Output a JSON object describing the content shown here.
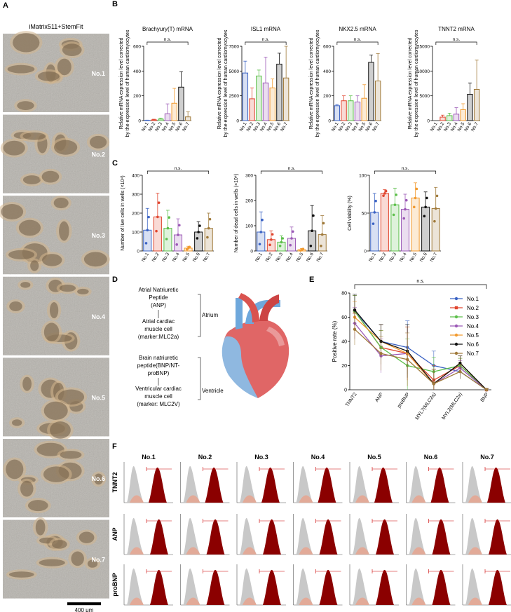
{
  "panels": {
    "A": "A",
    "B": "B",
    "C": "C",
    "D": "D",
    "E": "E",
    "F": "F"
  },
  "colors": {
    "No.1": "#3b63c4",
    "No.2": "#e0452e",
    "No.3": "#5cbf4a",
    "No.4": "#9b59b6",
    "No.5": "#f29a2e",
    "No.6": "#111111",
    "No.7": "#a07a3a",
    "atrium": "#6fa8dc",
    "ventricle": "#e06666",
    "dark_red": "#8b0000",
    "gray_hist": "#c8c8c8"
  },
  "panel_a": {
    "title": "iMatrix511+StemFit",
    "labels": [
      "No.1",
      "No.2",
      "No.3",
      "No.4",
      "No.5",
      "No.6",
      "No.7"
    ],
    "scale_bar": "400 μm"
  },
  "panel_b": {
    "ylabel_line1": "Relative mRNA expression level corrected",
    "ylabel_line2": "by the expression level of human cardiomyocytes",
    "ns": "n.s."
  },
  "panel_c": {
    "ns": "n.s."
  },
  "panel_d": {
    "anp": [
      "Atrial Natriuretic",
      "Peptide",
      "(ANP)"
    ],
    "mlc2a": [
      "Atrial cardiac",
      "muscle cell",
      "(marker:MLC2a)"
    ],
    "bnp": [
      "Brain natriuretic",
      "peptide(BNP/NT-",
      "proBNP)"
    ],
    "mlc2v": [
      "Ventricular cardiac",
      "muscle cell",
      "(marker: MLC2V)"
    ],
    "atrium": "Atrium",
    "ventricle": "Ventricle"
  },
  "panel_f": {
    "rows": [
      "TNNT2",
      "ANP",
      "proBNP"
    ],
    "samples": [
      "No.1",
      "No.2",
      "No.3",
      "No.4",
      "No.5",
      "No.6",
      "No.7"
    ]
  },
  "chart_data": [
    {
      "type": "bar",
      "title": "Brachyury(T) mRNA",
      "categories": [
        "No.1",
        "No.2",
        "No.3",
        "No.4",
        "No.5",
        "No.6",
        "No.7"
      ],
      "values": [
        2,
        6,
        12,
        55,
        140,
        270,
        30
      ],
      "errors": [
        2,
        5,
        8,
        80,
        120,
        125,
        40
      ],
      "ylim": [
        0,
        600
      ],
      "yticks": [
        0,
        200,
        400,
        600
      ],
      "ylabel": "Relative mRNA expression level corrected by the expression level of human cardiomyocytes",
      "annotation": "n.s."
    },
    {
      "type": "bar",
      "title": "ISL1 mRNA",
      "categories": [
        "No.1",
        "No.2",
        "No.3",
        "No.4",
        "No.5",
        "No.6",
        "No.7"
      ],
      "values": [
        4800,
        2200,
        4500,
        3800,
        3300,
        5700,
        4300
      ],
      "errors": [
        1200,
        1100,
        600,
        2600,
        900,
        1100,
        3200
      ],
      "ylim": [
        0,
        7500
      ],
      "yticks": [
        0,
        2500,
        5000,
        7500
      ],
      "ylabel": "Relative mRNA expression level corrected by the expression level of human cardiomyocytes",
      "annotation": "n.s."
    },
    {
      "type": "bar",
      "title": "NKX2.5 mRNA",
      "categories": [
        "No.1",
        "No.2",
        "No.3",
        "No.4",
        "No.5",
        "No.6",
        "No.7"
      ],
      "values": [
        120,
        160,
        160,
        150,
        180,
        470,
        320
      ],
      "errors": [
        10,
        40,
        40,
        50,
        110,
        60,
        220
      ],
      "ylim": [
        0,
        600
      ],
      "yticks": [
        0,
        200,
        400,
        600
      ],
      "ylabel": "Relative mRNA expression level corrected by the expression level of human cardiomyocytes",
      "annotation": "n.s."
    },
    {
      "type": "bar",
      "title": "TNNT2 mRNA",
      "categories": [
        "No.1",
        "No.2",
        "No.3",
        "No.4",
        "No.5",
        "No.6",
        "No.7"
      ],
      "values": [
        0,
        700,
        1000,
        1300,
        2200,
        5300,
        6300
      ],
      "errors": [
        0,
        400,
        500,
        1300,
        1200,
        2300,
        5900
      ],
      "ylim": [
        0,
        15000
      ],
      "yticks": [
        0,
        5000,
        10000,
        15000
      ],
      "ylabel": "Relative mRNA expression level corrected by the expression level of human cardiomyocytes",
      "annotation": "n.s."
    },
    {
      "type": "bar",
      "title": "",
      "categories": [
        "No.1",
        "No.2",
        "No.3",
        "No.4",
        "No.5",
        "No.6",
        "No.7"
      ],
      "values": [
        110,
        180,
        120,
        85,
        15,
        100,
        120
      ],
      "errors": [
        115,
        125,
        95,
        85,
        10,
        55,
        80
      ],
      "ylim": [
        0,
        400
      ],
      "yticks": [
        0,
        100,
        200,
        300,
        400
      ],
      "ylabel": "Number of live cells in wells (×10⁴)",
      "annotation": "n.s."
    },
    {
      "type": "bar",
      "title": "",
      "categories": [
        "No.1",
        "No.2",
        "No.3",
        "No.4",
        "No.5",
        "No.6",
        "No.7"
      ],
      "values": [
        75,
        45,
        35,
        50,
        5,
        80,
        65
      ],
      "errors": [
        80,
        35,
        25,
        45,
        5,
        100,
        75
      ],
      "ylim": [
        0,
        300
      ],
      "yticks": [
        0,
        100,
        200,
        300
      ],
      "ylabel": "Number of dead cells in wells (×10⁴)",
      "annotation": "n.s."
    },
    {
      "type": "bar",
      "title": "",
      "categories": [
        "No.1",
        "No.2",
        "No.3",
        "No.4",
        "No.5",
        "No.6",
        "No.7"
      ],
      "values": [
        51,
        76,
        61,
        55,
        70,
        58,
        56
      ],
      "errors": [
        25,
        5,
        22,
        20,
        20,
        20,
        28
      ],
      "ylim": [
        0,
        100
      ],
      "yticks": [
        0,
        50,
        100
      ],
      "ylabel": "Cell viability (%)",
      "annotation": "n.s."
    },
    {
      "type": "line",
      "title": "",
      "categories": [
        "TNNT2",
        "ANP",
        "proBNP",
        "MYL7(MLC2a)",
        "MYL2(MLC2v)",
        "BNP"
      ],
      "series": [
        {
          "name": "No.1",
          "values": [
            65,
            40,
            35,
            20,
            15,
            0
          ]
        },
        {
          "name": "No.2",
          "values": [
            65,
            35,
            30,
            8,
            20,
            0
          ]
        },
        {
          "name": "No.3",
          "values": [
            65,
            35,
            20,
            15,
            20,
            0
          ]
        },
        {
          "name": "No.4",
          "values": [
            55,
            28,
            30,
            5,
            18,
            0
          ]
        },
        {
          "name": "No.5",
          "values": [
            60,
            40,
            30,
            5,
            22,
            0
          ]
        },
        {
          "name": "No.6",
          "values": [
            66,
            40,
            32,
            5,
            22,
            0
          ]
        },
        {
          "name": "No.7",
          "values": [
            50,
            30,
            25,
            5,
            15,
            0
          ]
        }
      ],
      "ylim": [
        0,
        80
      ],
      "yticks": [
        0,
        20,
        40,
        60,
        80
      ],
      "ylabel": "Positive rate (%)",
      "annotation": "n.s."
    }
  ]
}
